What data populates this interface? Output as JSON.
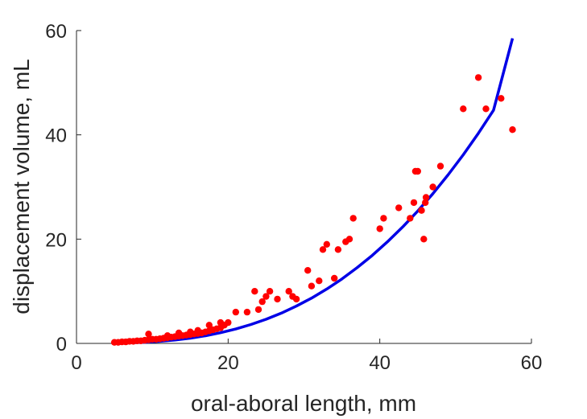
{
  "chart_data": {
    "type": "scatter",
    "title": "",
    "xlabel": "oral-aboral length, mm",
    "ylabel": "displacement volume, mL",
    "xlim": [
      0,
      60
    ],
    "ylim": [
      0,
      60
    ],
    "xticks": [
      0,
      20,
      40,
      60
    ],
    "yticks": [
      0,
      20,
      40,
      60
    ],
    "grid": false,
    "colors": {
      "points": "#ff0000",
      "fit": "#0000e6",
      "axis": "#262626"
    },
    "series": [
      {
        "kind": "scatter",
        "x": [
          5,
          5.5,
          6,
          6.5,
          7,
          7.5,
          8,
          8.5,
          9,
          9.5,
          10,
          10.5,
          11,
          11.5,
          12,
          12.5,
          13,
          13.5,
          14,
          14.5,
          15,
          15.5,
          16,
          16.5,
          17,
          17.5,
          18,
          18.5,
          19,
          19.5,
          20,
          9.5,
          12,
          13.5,
          15,
          16,
          17.5,
          19,
          21,
          22.5,
          23.5,
          24,
          24.5,
          25,
          25.5,
          26.5,
          28,
          28.5,
          29,
          30.5,
          31,
          32,
          32.5,
          33,
          34,
          34.5,
          35.5,
          36,
          36.5,
          40,
          40.5,
          42.5,
          44,
          44.5,
          44.7,
          45,
          45.5,
          45.8,
          46,
          46.1,
          47,
          48,
          51,
          53,
          54,
          56,
          57.5
        ],
        "y": [
          0.2,
          0.2,
          0.3,
          0.3,
          0.4,
          0.4,
          0.5,
          0.5,
          0.6,
          0.7,
          0.8,
          0.8,
          0.9,
          1,
          1.1,
          1.2,
          1.3,
          1.4,
          1.5,
          1.6,
          1.7,
          1.8,
          1.9,
          2,
          2.2,
          2.4,
          2.6,
          2.8,
          3,
          3.5,
          4,
          1.8,
          1.5,
          2,
          2.2,
          2.5,
          3.5,
          4,
          6,
          6,
          10,
          6.5,
          8,
          9,
          10,
          8.5,
          10,
          9,
          8.5,
          14,
          11,
          12,
          18,
          19,
          12.5,
          18,
          19.5,
          20,
          24,
          22,
          24,
          26,
          24,
          27,
          33,
          33,
          25.5,
          20,
          27,
          28,
          30,
          34,
          45,
          51,
          45,
          47,
          41
        ]
      },
      {
        "kind": "line",
        "x": [
          5,
          7,
          9,
          11,
          13,
          15,
          17,
          19,
          21,
          23,
          25,
          27,
          29,
          31,
          33,
          35,
          37,
          39,
          41,
          43,
          45,
          47,
          49,
          51,
          53,
          55,
          57.5
        ],
        "y": [
          0.037,
          0.102,
          0.218,
          0.399,
          0.659,
          1.01,
          1.47,
          2.05,
          2.76,
          3.62,
          4.63,
          5.8,
          7.15,
          8.69,
          10.42,
          12.36,
          14.51,
          16.88,
          19.48,
          22.31,
          25.39,
          28.72,
          32.31,
          36.17,
          40.3,
          44.71,
          58.5
        ]
      }
    ]
  }
}
